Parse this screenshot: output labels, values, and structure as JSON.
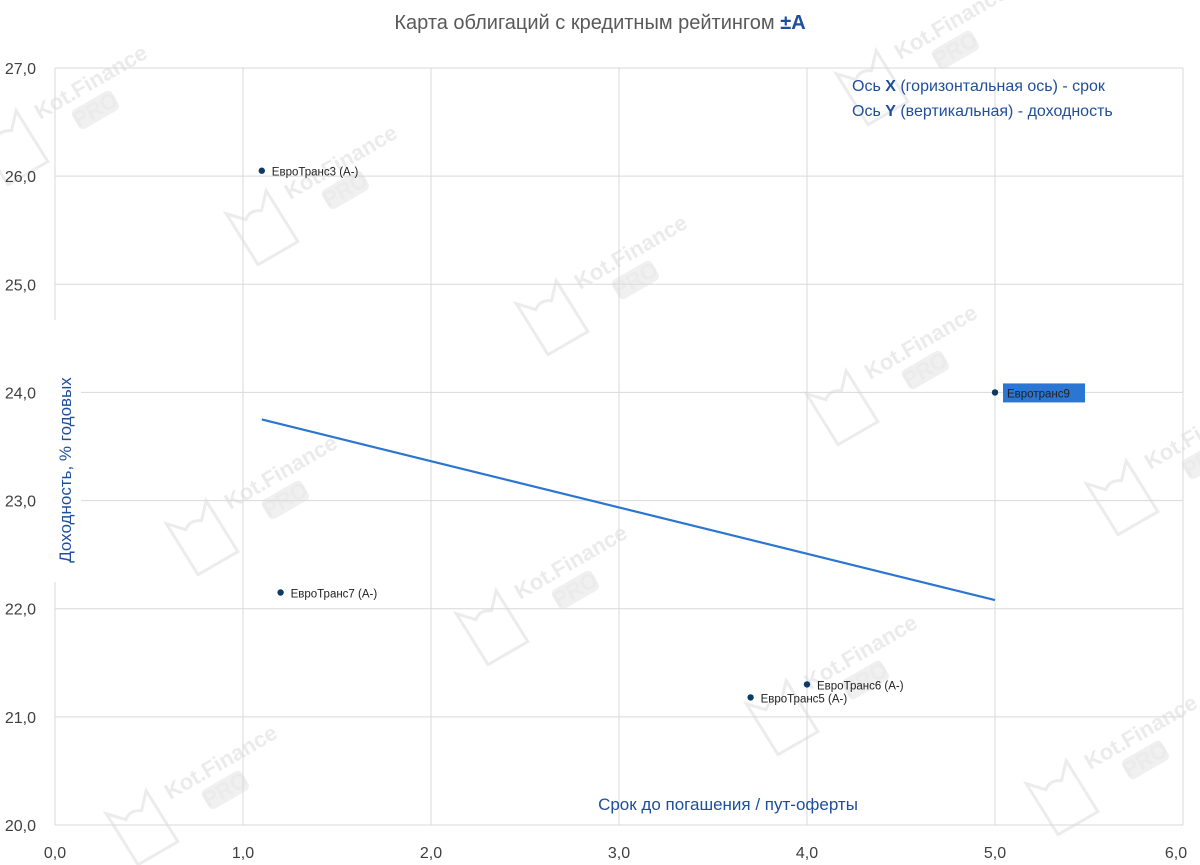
{
  "chart_data": {
    "type": "scatter",
    "title_main": "Карта облигаций с кредитным рейтингом ",
    "title_bold": "±А",
    "xlabel": "Срок до погашения / пут-оферты",
    "ylabel": "Доходность, % годовых",
    "xlim": [
      0,
      6
    ],
    "ylim": [
      20,
      27
    ],
    "x_ticks": [
      "0,0",
      "1,0",
      "2,0",
      "3,0",
      "4,0",
      "5,0",
      "6,0"
    ],
    "y_ticks": [
      "20,0",
      "21,0",
      "22,0",
      "23,0",
      "24,0",
      "25,0",
      "26,0",
      "27,0"
    ],
    "grid": true,
    "points": [
      {
        "label": "ЕвроТранс3 (A-)",
        "x": 1.1,
        "y": 26.05,
        "highlight": false
      },
      {
        "label": "ЕвроТранс7 (A-)",
        "x": 1.2,
        "y": 22.15,
        "highlight": false
      },
      {
        "label": "ЕвроТранс6 (A-)",
        "x": 4.0,
        "y": 21.3,
        "highlight": false
      },
      {
        "label": "ЕвроТранс5 (A-)",
        "x": 3.7,
        "y": 21.18,
        "highlight": false
      },
      {
        "label": "Евротранс9",
        "x": 5.0,
        "y": 24.0,
        "highlight": true
      }
    ],
    "trendline": {
      "x": [
        1.1,
        5.0
      ],
      "y": [
        23.75,
        22.08
      ]
    },
    "legend_lines": [
      {
        "prefix": "Ось ",
        "bold": "X",
        "suffix": " (горизонтальная ось) - срок"
      },
      {
        "prefix": "Ось ",
        "bold": "Y",
        "suffix": " (вертикальная) - доходность"
      }
    ],
    "watermark": {
      "brand": "Kot.Finance",
      "badge": "PRO"
    },
    "colors": {
      "point": "#0d3b66",
      "trend": "#2a76d2",
      "grid": "#d9d9d9",
      "highlight_bg": "#2a76d2",
      "highlight_text": "#ffffff",
      "axis_label": "#1f4e9c",
      "title": "#595959"
    }
  }
}
